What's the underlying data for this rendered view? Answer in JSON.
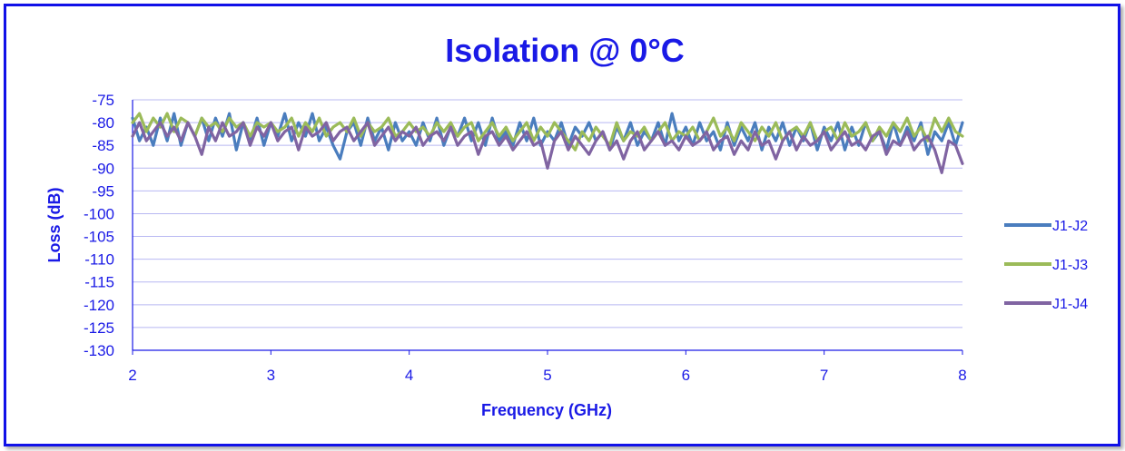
{
  "chart_data": {
    "type": "line",
    "title": "Isolation @ 0°C",
    "xlabel": "Frequency (GHz)",
    "ylabel": "Loss (dB)",
    "xlim": [
      2,
      8
    ],
    "ylim": [
      -130,
      -75
    ],
    "xticks": [
      "2",
      "3",
      "4",
      "5",
      "6",
      "7",
      "8"
    ],
    "yticks": [
      "-75",
      "-80",
      "-85",
      "-90",
      "-95",
      "-100",
      "-105",
      "-110",
      "-115",
      "-120",
      "-125",
      "-130"
    ],
    "grid": true,
    "legend_position": "right",
    "series": [
      {
        "name": "J1-J2",
        "color": "#4a7dbe",
        "x": [
          2.0,
          2.05,
          2.1,
          2.15,
          2.2,
          2.25,
          2.3,
          2.35,
          2.4,
          2.45,
          2.5,
          2.55,
          2.6,
          2.65,
          2.7,
          2.75,
          2.8,
          2.85,
          2.9,
          2.95,
          3.0,
          3.05,
          3.1,
          3.15,
          3.2,
          3.25,
          3.3,
          3.35,
          3.4,
          3.45,
          3.5,
          3.55,
          3.6,
          3.65,
          3.7,
          3.75,
          3.8,
          3.85,
          3.9,
          3.95,
          4.0,
          4.05,
          4.1,
          4.15,
          4.2,
          4.25,
          4.3,
          4.35,
          4.4,
          4.45,
          4.5,
          4.55,
          4.6,
          4.65,
          4.7,
          4.75,
          4.8,
          4.85,
          4.9,
          4.95,
          5.0,
          5.05,
          5.1,
          5.15,
          5.2,
          5.25,
          5.3,
          5.35,
          5.4,
          5.45,
          5.5,
          5.55,
          5.6,
          5.65,
          5.7,
          5.75,
          5.8,
          5.85,
          5.9,
          5.95,
          6.0,
          6.05,
          6.1,
          6.15,
          6.2,
          6.25,
          6.3,
          6.35,
          6.4,
          6.45,
          6.5,
          6.55,
          6.6,
          6.65,
          6.7,
          6.75,
          6.8,
          6.85,
          6.9,
          6.95,
          7.0,
          7.05,
          7.1,
          7.15,
          7.2,
          7.25,
          7.3,
          7.35,
          7.4,
          7.45,
          7.5,
          7.55,
          7.6,
          7.65,
          7.7,
          7.75,
          7.8,
          7.85,
          7.9,
          7.95,
          8.0
        ],
        "y": [
          -79,
          -84,
          -81,
          -85,
          -79,
          -84,
          -78,
          -85,
          -80,
          -83,
          -79,
          -84,
          -79,
          -83,
          -78,
          -86,
          -80,
          -84,
          -79,
          -85,
          -80,
          -83,
          -78,
          -84,
          -80,
          -83,
          -78,
          -84,
          -81,
          -85,
          -88,
          -82,
          -80,
          -85,
          -79,
          -84,
          -81,
          -86,
          -80,
          -84,
          -82,
          -85,
          -80,
          -84,
          -79,
          -85,
          -81,
          -83,
          -79,
          -84,
          -80,
          -85,
          -79,
          -84,
          -82,
          -85,
          -80,
          -84,
          -79,
          -85,
          -82,
          -84,
          -80,
          -85,
          -81,
          -83,
          -80,
          -84,
          -82,
          -86,
          -81,
          -84,
          -80,
          -85,
          -82,
          -84,
          -80,
          -85,
          -78,
          -84,
          -81,
          -85,
          -80,
          -84,
          -82,
          -86,
          -80,
          -85,
          -81,
          -84,
          -80,
          -86,
          -81,
          -84,
          -80,
          -85,
          -81,
          -84,
          -80,
          -86,
          -81,
          -84,
          -80,
          -86,
          -81,
          -85,
          -80,
          -84,
          -82,
          -86,
          -80,
          -85,
          -81,
          -84,
          -80,
          -87,
          -82,
          -84,
          -80,
          -85,
          -80
        ]
      },
      {
        "name": "J1-J3",
        "color": "#9bbb59",
        "x": [
          2.0,
          2.05,
          2.1,
          2.15,
          2.2,
          2.25,
          2.3,
          2.35,
          2.4,
          2.45,
          2.5,
          2.55,
          2.6,
          2.65,
          2.7,
          2.75,
          2.8,
          2.85,
          2.9,
          2.95,
          3.0,
          3.05,
          3.1,
          3.15,
          3.2,
          3.25,
          3.3,
          3.35,
          3.4,
          3.45,
          3.5,
          3.55,
          3.6,
          3.65,
          3.7,
          3.75,
          3.8,
          3.85,
          3.9,
          3.95,
          4.0,
          4.05,
          4.1,
          4.15,
          4.2,
          4.25,
          4.3,
          4.35,
          4.4,
          4.45,
          4.5,
          4.55,
          4.6,
          4.65,
          4.7,
          4.75,
          4.8,
          4.85,
          4.9,
          4.95,
          5.0,
          5.05,
          5.1,
          5.15,
          5.2,
          5.25,
          5.3,
          5.35,
          5.4,
          5.45,
          5.5,
          5.55,
          5.6,
          5.65,
          5.7,
          5.75,
          5.8,
          5.85,
          5.9,
          5.95,
          6.0,
          6.05,
          6.1,
          6.15,
          6.2,
          6.25,
          6.3,
          6.35,
          6.4,
          6.45,
          6.5,
          6.55,
          6.6,
          6.65,
          6.7,
          6.75,
          6.8,
          6.85,
          6.9,
          6.95,
          7.0,
          7.05,
          7.1,
          7.15,
          7.2,
          7.25,
          7.3,
          7.35,
          7.4,
          7.45,
          7.5,
          7.55,
          7.6,
          7.65,
          7.7,
          7.75,
          7.8,
          7.85,
          7.9,
          7.95,
          8.0
        ],
        "y": [
          -80,
          -78,
          -82,
          -79,
          -81,
          -78,
          -82,
          -79,
          -80,
          -83,
          -79,
          -81,
          -80,
          -82,
          -79,
          -81,
          -80,
          -83,
          -80,
          -81,
          -80,
          -82,
          -81,
          -79,
          -83,
          -80,
          -82,
          -79,
          -83,
          -81,
          -80,
          -82,
          -79,
          -83,
          -80,
          -82,
          -81,
          -79,
          -83,
          -82,
          -80,
          -82,
          -81,
          -83,
          -80,
          -82,
          -80,
          -83,
          -81,
          -80,
          -84,
          -82,
          -80,
          -83,
          -81,
          -84,
          -82,
          -80,
          -84,
          -81,
          -83,
          -80,
          -82,
          -84,
          -86,
          -82,
          -84,
          -81,
          -83,
          -85,
          -80,
          -84,
          -82,
          -83,
          -81,
          -84,
          -82,
          -80,
          -84,
          -82,
          -83,
          -81,
          -84,
          -82,
          -79,
          -83,
          -81,
          -84,
          -80,
          -82,
          -84,
          -81,
          -83,
          -80,
          -84,
          -82,
          -81,
          -83,
          -80,
          -84,
          -82,
          -81,
          -84,
          -80,
          -83,
          -82,
          -80,
          -84,
          -81,
          -83,
          -80,
          -82,
          -79,
          -83,
          -81,
          -84,
          -79,
          -82,
          -79,
          -82,
          -83
        ]
      },
      {
        "name": "J1-J4",
        "color": "#8064a2",
        "x": [
          2.0,
          2.05,
          2.1,
          2.15,
          2.2,
          2.25,
          2.3,
          2.35,
          2.4,
          2.45,
          2.5,
          2.55,
          2.6,
          2.65,
          2.7,
          2.75,
          2.8,
          2.85,
          2.9,
          2.95,
          3.0,
          3.05,
          3.1,
          3.15,
          3.2,
          3.25,
          3.3,
          3.35,
          3.4,
          3.45,
          3.5,
          3.55,
          3.6,
          3.65,
          3.7,
          3.75,
          3.8,
          3.85,
          3.9,
          3.95,
          4.0,
          4.05,
          4.1,
          4.15,
          4.2,
          4.25,
          4.3,
          4.35,
          4.4,
          4.45,
          4.5,
          4.55,
          4.6,
          4.65,
          4.7,
          4.75,
          4.8,
          4.85,
          4.9,
          4.95,
          5.0,
          5.05,
          5.1,
          5.15,
          5.2,
          5.25,
          5.3,
          5.35,
          5.4,
          5.45,
          5.5,
          5.55,
          5.6,
          5.65,
          5.7,
          5.75,
          5.8,
          5.85,
          5.9,
          5.95,
          6.0,
          6.05,
          6.1,
          6.15,
          6.2,
          6.25,
          6.3,
          6.35,
          6.4,
          6.45,
          6.5,
          6.55,
          6.6,
          6.65,
          6.7,
          6.75,
          6.8,
          6.85,
          6.9,
          6.95,
          7.0,
          7.05,
          7.1,
          7.15,
          7.2,
          7.25,
          7.3,
          7.35,
          7.4,
          7.45,
          7.5,
          7.55,
          7.6,
          7.65,
          7.7,
          7.75,
          7.8,
          7.85,
          7.9,
          7.95,
          8.0
        ],
        "y": [
          -83,
          -80,
          -84,
          -82,
          -80,
          -83,
          -81,
          -84,
          -80,
          -83,
          -87,
          -81,
          -84,
          -80,
          -83,
          -82,
          -80,
          -85,
          -81,
          -83,
          -80,
          -84,
          -82,
          -81,
          -86,
          -81,
          -83,
          -82,
          -80,
          -84,
          -82,
          -81,
          -84,
          -82,
          -80,
          -85,
          -83,
          -81,
          -84,
          -82,
          -83,
          -81,
          -85,
          -83,
          -82,
          -84,
          -81,
          -85,
          -83,
          -82,
          -87,
          -83,
          -82,
          -85,
          -83,
          -86,
          -84,
          -82,
          -85,
          -84,
          -90,
          -84,
          -82,
          -86,
          -83,
          -85,
          -87,
          -84,
          -82,
          -86,
          -84,
          -88,
          -84,
          -82,
          -86,
          -84,
          -82,
          -85,
          -84,
          -86,
          -83,
          -85,
          -84,
          -82,
          -86,
          -84,
          -83,
          -87,
          -84,
          -86,
          -82,
          -85,
          -84,
          -88,
          -84,
          -82,
          -86,
          -83,
          -85,
          -84,
          -82,
          -86,
          -84,
          -82,
          -85,
          -84,
          -86,
          -83,
          -82,
          -87,
          -84,
          -85,
          -82,
          -86,
          -84,
          -83,
          -86,
          -91,
          -84,
          -85,
          -89
        ]
      }
    ]
  }
}
